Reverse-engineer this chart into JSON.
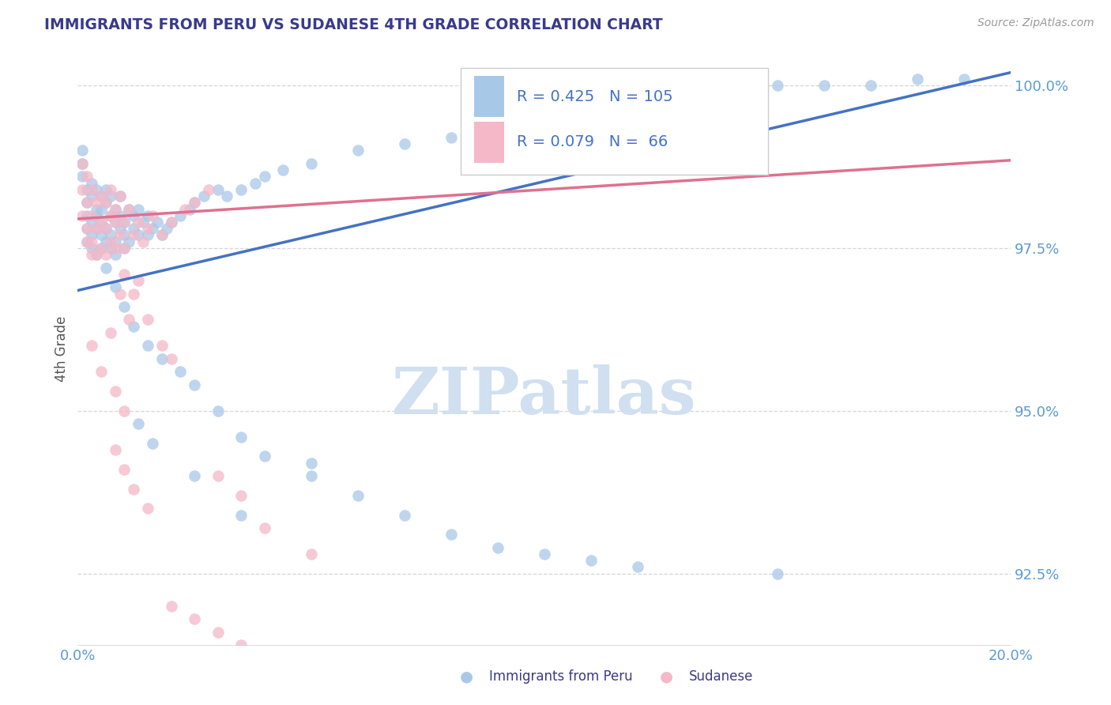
{
  "title": "IMMIGRANTS FROM PERU VS SUDANESE 4TH GRADE CORRELATION CHART",
  "source_text": "Source: ZipAtlas.com",
  "ylabel": "4th Grade",
  "xlim": [
    0.0,
    0.2
  ],
  "ylim": [
    0.914,
    1.005
  ],
  "yticks": [
    0.925,
    0.95,
    0.975,
    1.0
  ],
  "yticklabels": [
    "92.5%",
    "95.0%",
    "97.5%",
    "100.0%"
  ],
  "xticks": [
    0.0,
    0.2
  ],
  "xticklabels": [
    "0.0%",
    "20.0%"
  ],
  "background_color": "#ffffff",
  "grid_color": "#cccccc",
  "title_color": "#3a3a8c",
  "axis_label_color": "#555555",
  "tick_color": "#5b9bd5",
  "watermark_text": "ZIPatlas",
  "watermark_color": "#d0e0f0",
  "blue_color": "#a8c8e8",
  "pink_color": "#f4b8c8",
  "blue_line_color": "#4472c4",
  "pink_line_color": "#e07090",
  "legend_R_color": "#4472c4",
  "legend_box_blue": "#a8c8e8",
  "legend_box_pink": "#f4b8c8",
  "blue_line_x": [
    0.0,
    0.2
  ],
  "blue_line_y": [
    0.9685,
    1.002
  ],
  "pink_line_x": [
    0.0,
    0.2
  ],
  "pink_line_y": [
    0.9795,
    0.9885
  ],
  "blue_scatter_x": [
    0.001,
    0.001,
    0.001,
    0.002,
    0.002,
    0.002,
    0.002,
    0.002,
    0.003,
    0.003,
    0.003,
    0.003,
    0.003,
    0.004,
    0.004,
    0.004,
    0.004,
    0.004,
    0.005,
    0.005,
    0.005,
    0.005,
    0.005,
    0.006,
    0.006,
    0.006,
    0.006,
    0.007,
    0.007,
    0.007,
    0.007,
    0.008,
    0.008,
    0.008,
    0.008,
    0.009,
    0.009,
    0.009,
    0.01,
    0.01,
    0.01,
    0.011,
    0.011,
    0.012,
    0.012,
    0.013,
    0.013,
    0.014,
    0.015,
    0.015,
    0.016,
    0.017,
    0.018,
    0.019,
    0.02,
    0.022,
    0.024,
    0.025,
    0.027,
    0.03,
    0.032,
    0.035,
    0.038,
    0.04,
    0.044,
    0.05,
    0.06,
    0.07,
    0.08,
    0.09,
    0.1,
    0.11,
    0.12,
    0.13,
    0.14,
    0.15,
    0.16,
    0.17,
    0.18,
    0.19,
    0.006,
    0.008,
    0.01,
    0.012,
    0.015,
    0.018,
    0.022,
    0.025,
    0.03,
    0.035,
    0.04,
    0.05,
    0.06,
    0.07,
    0.08,
    0.09,
    0.1,
    0.11,
    0.12,
    0.15,
    0.013,
    0.016,
    0.025,
    0.035,
    0.05
  ],
  "blue_scatter_y": [
    0.99,
    0.988,
    0.986,
    0.984,
    0.98,
    0.978,
    0.982,
    0.976,
    0.979,
    0.983,
    0.977,
    0.985,
    0.975,
    0.981,
    0.978,
    0.984,
    0.974,
    0.98,
    0.977,
    0.983,
    0.975,
    0.979,
    0.981,
    0.978,
    0.982,
    0.976,
    0.984,
    0.975,
    0.98,
    0.983,
    0.977,
    0.976,
    0.981,
    0.979,
    0.974,
    0.978,
    0.983,
    0.98,
    0.975,
    0.979,
    0.977,
    0.981,
    0.976,
    0.978,
    0.98,
    0.977,
    0.981,
    0.979,
    0.977,
    0.98,
    0.978,
    0.979,
    0.977,
    0.978,
    0.979,
    0.98,
    0.981,
    0.982,
    0.983,
    0.984,
    0.983,
    0.984,
    0.985,
    0.986,
    0.987,
    0.988,
    0.99,
    0.991,
    0.992,
    0.993,
    0.995,
    0.996,
    0.997,
    0.998,
    0.999,
    1.0,
    1.0,
    1.0,
    1.001,
    1.001,
    0.972,
    0.969,
    0.966,
    0.963,
    0.96,
    0.958,
    0.956,
    0.954,
    0.95,
    0.946,
    0.943,
    0.94,
    0.937,
    0.934,
    0.931,
    0.929,
    0.928,
    0.927,
    0.926,
    0.925,
    0.948,
    0.945,
    0.94,
    0.934,
    0.942
  ],
  "pink_scatter_x": [
    0.001,
    0.001,
    0.001,
    0.002,
    0.002,
    0.002,
    0.002,
    0.003,
    0.003,
    0.003,
    0.003,
    0.004,
    0.004,
    0.004,
    0.005,
    0.005,
    0.005,
    0.006,
    0.006,
    0.006,
    0.007,
    0.007,
    0.007,
    0.008,
    0.008,
    0.008,
    0.009,
    0.009,
    0.01,
    0.01,
    0.011,
    0.012,
    0.013,
    0.014,
    0.015,
    0.016,
    0.018,
    0.02,
    0.023,
    0.025,
    0.028,
    0.01,
    0.012,
    0.015,
    0.018,
    0.02,
    0.008,
    0.01,
    0.012,
    0.015,
    0.008,
    0.01,
    0.003,
    0.005,
    0.007,
    0.009,
    0.011,
    0.013,
    0.03,
    0.04,
    0.05,
    0.035,
    0.02,
    0.025,
    0.03,
    0.035
  ],
  "pink_scatter_y": [
    0.988,
    0.984,
    0.98,
    0.986,
    0.982,
    0.978,
    0.976,
    0.984,
    0.98,
    0.976,
    0.974,
    0.982,
    0.978,
    0.974,
    0.983,
    0.979,
    0.975,
    0.982,
    0.978,
    0.974,
    0.98,
    0.976,
    0.984,
    0.979,
    0.975,
    0.981,
    0.977,
    0.983,
    0.979,
    0.975,
    0.981,
    0.977,
    0.979,
    0.976,
    0.978,
    0.98,
    0.977,
    0.979,
    0.981,
    0.982,
    0.984,
    0.971,
    0.968,
    0.964,
    0.96,
    0.958,
    0.944,
    0.941,
    0.938,
    0.935,
    0.953,
    0.95,
    0.96,
    0.956,
    0.962,
    0.968,
    0.964,
    0.97,
    0.94,
    0.932,
    0.928,
    0.937,
    0.92,
    0.918,
    0.916,
    0.914
  ]
}
